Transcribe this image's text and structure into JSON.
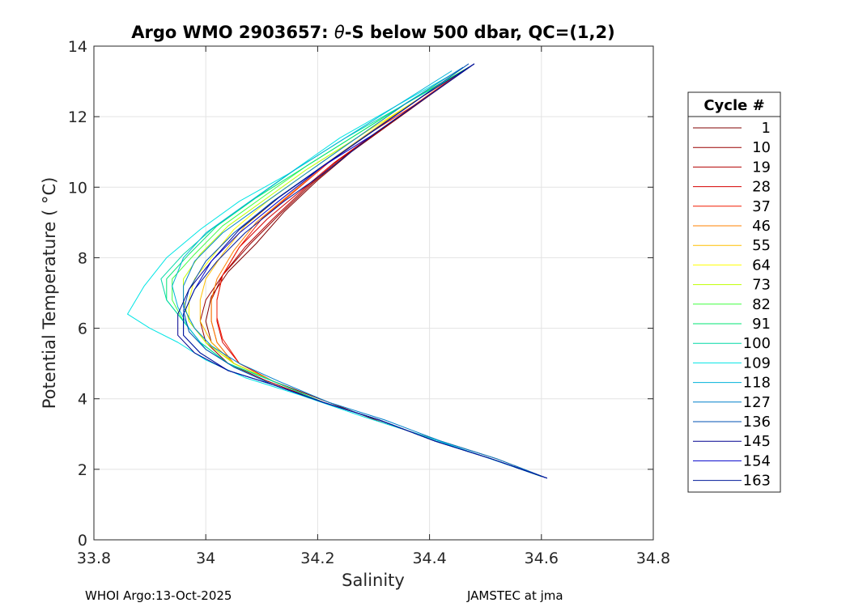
{
  "footer": {
    "left": "WHOI Argo:13-Oct-2025",
    "right": "JAMSTEC at jma"
  },
  "chart_data": {
    "type": "line",
    "title_prefix": "Argo WMO 2903657: ",
    "title_theta": "θ",
    "title_suffix": "-S below 500 dbar,  QC=(1,2)",
    "xlabel": "Salinity",
    "ylabel": "Potential Temperature ( °C)",
    "xlim": [
      33.8,
      34.8
    ],
    "ylim": [
      0,
      14
    ],
    "xticks": [
      33.8,
      34.0,
      34.2,
      34.4,
      34.6,
      34.8
    ],
    "xtick_labels": [
      "33.8",
      "34",
      "34.2",
      "34.4",
      "34.6",
      "34.8"
    ],
    "yticks": [
      0,
      2,
      4,
      6,
      8,
      10,
      12,
      14
    ],
    "ytick_labels": [
      "0",
      "2",
      "4",
      "6",
      "8",
      "10",
      "12",
      "14"
    ],
    "grid": true,
    "legend_title": "Cycle #",
    "legend_position": "outside-right",
    "series": [
      {
        "name": "1",
        "color": "#800000",
        "salinity": [
          34.48,
          34.4,
          34.33,
          34.26,
          34.2,
          34.14,
          34.09,
          34.04,
          34.01,
          34.0,
          34.01,
          34.05,
          34.12,
          34.22,
          34.32,
          34.42,
          34.52,
          34.61
        ],
        "theta": [
          13.5,
          12.6,
          11.8,
          11.0,
          10.2,
          9.3,
          8.4,
          7.6,
          6.9,
          6.2,
          5.6,
          5.0,
          4.5,
          3.9,
          3.3,
          2.8,
          2.3,
          1.75
        ]
      },
      {
        "name": "10",
        "color": "#990000",
        "salinity": [
          34.47,
          34.39,
          34.32,
          34.25,
          34.19,
          34.13,
          34.08,
          34.03,
          34.0,
          33.99,
          34.0,
          34.04,
          34.11,
          34.21,
          34.31,
          34.41,
          34.51,
          34.61
        ],
        "theta": [
          13.4,
          12.5,
          11.7,
          10.9,
          10.1,
          9.2,
          8.4,
          7.5,
          6.8,
          6.2,
          5.6,
          5.0,
          4.5,
          3.9,
          3.4,
          2.8,
          2.3,
          1.75
        ]
      },
      {
        "name": "19",
        "color": "#b30000",
        "salinity": [
          34.46,
          34.38,
          34.31,
          34.24,
          34.18,
          34.12,
          34.07,
          34.03,
          34.01,
          34.01,
          34.02,
          34.05,
          34.12,
          34.21,
          34.31,
          34.41,
          34.51,
          34.6
        ],
        "theta": [
          13.3,
          12.4,
          11.6,
          10.8,
          10.0,
          9.1,
          8.3,
          7.5,
          6.8,
          6.2,
          5.6,
          5.0,
          4.5,
          3.9,
          3.4,
          2.8,
          2.3,
          1.8
        ]
      },
      {
        "name": "28",
        "color": "#d40000",
        "salinity": [
          34.46,
          34.38,
          34.3,
          34.23,
          34.17,
          34.11,
          34.06,
          34.03,
          34.02,
          34.02,
          34.03,
          34.06,
          34.12,
          34.21,
          34.31,
          34.41,
          34.51,
          34.6
        ],
        "theta": [
          13.3,
          12.4,
          11.5,
          10.7,
          9.9,
          9.1,
          8.3,
          7.5,
          6.8,
          6.2,
          5.6,
          5.0,
          4.5,
          3.9,
          3.4,
          2.8,
          2.3,
          1.8
        ]
      },
      {
        "name": "37",
        "color": "#f21a00",
        "salinity": [
          34.45,
          34.37,
          34.29,
          34.22,
          34.16,
          34.1,
          34.06,
          34.03,
          34.02,
          34.02,
          34.03,
          34.06,
          34.12,
          34.21,
          34.31,
          34.41,
          34.51,
          34.6
        ],
        "theta": [
          13.2,
          12.3,
          11.5,
          10.7,
          9.9,
          9.1,
          8.3,
          7.5,
          6.8,
          6.3,
          5.7,
          5.0,
          4.5,
          3.9,
          3.4,
          2.8,
          2.3,
          1.8
        ]
      },
      {
        "name": "46",
        "color": "#ff8000",
        "salinity": [
          34.45,
          34.36,
          34.28,
          34.21,
          34.15,
          34.09,
          34.05,
          34.02,
          34.01,
          34.01,
          34.02,
          34.05,
          34.12,
          34.21,
          34.31,
          34.41,
          34.51,
          34.6
        ],
        "theta": [
          13.2,
          12.3,
          11.4,
          10.6,
          9.8,
          9.0,
          8.2,
          7.4,
          6.8,
          6.2,
          5.6,
          5.0,
          4.5,
          3.9,
          3.4,
          2.8,
          2.3,
          1.8
        ]
      },
      {
        "name": "55",
        "color": "#ffbf00",
        "salinity": [
          34.44,
          34.35,
          34.27,
          34.2,
          34.13,
          34.07,
          34.03,
          34.0,
          33.99,
          33.99,
          34.01,
          34.05,
          34.12,
          34.21,
          34.31,
          34.41,
          34.51,
          34.6
        ],
        "theta": [
          13.1,
          12.2,
          11.3,
          10.5,
          9.7,
          8.9,
          8.1,
          7.4,
          6.8,
          6.2,
          5.6,
          5.0,
          4.5,
          3.9,
          3.4,
          2.8,
          2.3,
          1.8
        ]
      },
      {
        "name": "64",
        "color": "#ffff00",
        "salinity": [
          34.44,
          34.35,
          34.26,
          34.18,
          34.11,
          34.05,
          34.01,
          33.98,
          33.97,
          33.97,
          34.0,
          34.05,
          34.12,
          34.21,
          34.31,
          34.41,
          34.51,
          34.6
        ],
        "theta": [
          13.1,
          12.2,
          11.3,
          10.4,
          9.6,
          8.8,
          8.0,
          7.4,
          6.8,
          6.2,
          5.6,
          5.0,
          4.5,
          3.9,
          3.4,
          2.8,
          2.3,
          1.8
        ]
      },
      {
        "name": "73",
        "color": "#bfff00",
        "salinity": [
          34.45,
          34.36,
          34.27,
          34.18,
          34.11,
          34.04,
          33.99,
          33.96,
          33.96,
          33.97,
          34.0,
          34.05,
          34.12,
          34.21,
          34.31,
          34.41,
          34.51,
          34.6
        ],
        "theta": [
          13.3,
          12.4,
          11.4,
          10.5,
          9.7,
          8.9,
          8.1,
          7.4,
          6.8,
          6.2,
          5.6,
          5.0,
          4.5,
          3.9,
          3.4,
          2.8,
          2.3,
          1.8
        ]
      },
      {
        "name": "82",
        "color": "#40ff40",
        "salinity": [
          34.47,
          34.37,
          34.27,
          34.18,
          34.1,
          34.03,
          33.98,
          33.94,
          33.94,
          33.96,
          33.99,
          34.04,
          34.12,
          34.21,
          34.31,
          34.41,
          34.51,
          34.6
        ],
        "theta": [
          13.4,
          12.5,
          11.5,
          10.6,
          9.7,
          8.9,
          8.1,
          7.4,
          6.8,
          6.2,
          5.6,
          5.0,
          4.5,
          3.9,
          3.4,
          2.8,
          2.3,
          1.8
        ]
      },
      {
        "name": "91",
        "color": "#00e673",
        "salinity": [
          34.46,
          34.36,
          34.26,
          34.17,
          34.09,
          34.02,
          33.97,
          33.93,
          33.93,
          33.96,
          33.99,
          34.04,
          34.12,
          34.21,
          34.31,
          34.41,
          34.51,
          34.6
        ],
        "theta": [
          13.3,
          12.4,
          11.4,
          10.5,
          9.7,
          8.9,
          8.1,
          7.4,
          6.8,
          6.2,
          5.6,
          5.0,
          4.5,
          3.9,
          3.4,
          2.8,
          2.3,
          1.8
        ]
      },
      {
        "name": "100",
        "color": "#00d9a6",
        "salinity": [
          34.45,
          34.35,
          34.25,
          34.16,
          34.08,
          34.01,
          33.96,
          33.92,
          33.93,
          33.96,
          33.99,
          34.04,
          34.12,
          34.21,
          34.31,
          34.41,
          34.51,
          34.6
        ],
        "theta": [
          13.2,
          12.3,
          11.4,
          10.5,
          9.6,
          8.8,
          8.1,
          7.4,
          6.8,
          6.2,
          5.6,
          5.0,
          4.5,
          3.9,
          3.4,
          2.8,
          2.3,
          1.8
        ]
      },
      {
        "name": "109",
        "color": "#00e5e5",
        "salinity": [
          34.44,
          34.34,
          34.24,
          34.15,
          34.06,
          33.99,
          33.93,
          33.89,
          33.86,
          33.9,
          33.95,
          34.0,
          34.07,
          34.17,
          34.28,
          34.38,
          34.49,
          34.6
        ],
        "theta": [
          13.2,
          12.3,
          11.4,
          10.4,
          9.6,
          8.8,
          8.0,
          7.2,
          6.4,
          6.0,
          5.6,
          5.1,
          4.6,
          4.1,
          3.5,
          3.0,
          2.4,
          1.8
        ]
      },
      {
        "name": "118",
        "color": "#00b3d9",
        "salinity": [
          34.44,
          34.34,
          34.24,
          34.15,
          34.07,
          34.0,
          33.96,
          33.94,
          33.95,
          33.97,
          34.0,
          34.05,
          34.12,
          34.21,
          34.31,
          34.41,
          34.51,
          34.61
        ],
        "theta": [
          13.3,
          12.3,
          11.3,
          10.4,
          9.5,
          8.7,
          8.0,
          7.2,
          6.6,
          6.0,
          5.4,
          4.9,
          4.4,
          3.9,
          3.4,
          2.8,
          2.3,
          1.75
        ]
      },
      {
        "name": "127",
        "color": "#0080cc",
        "salinity": [
          34.46,
          34.36,
          34.27,
          34.18,
          34.1,
          34.03,
          33.98,
          33.96,
          33.96,
          33.98,
          34.01,
          34.06,
          34.13,
          34.22,
          34.32,
          34.42,
          34.52,
          34.61
        ],
        "theta": [
          13.4,
          12.4,
          11.4,
          10.4,
          9.5,
          8.7,
          7.9,
          7.2,
          6.6,
          6.0,
          5.5,
          5.0,
          4.5,
          3.9,
          3.4,
          2.8,
          2.3,
          1.75
        ]
      },
      {
        "name": "136",
        "color": "#0050b3",
        "salinity": [
          34.47,
          34.38,
          34.29,
          34.2,
          34.12,
          34.05,
          34.0,
          33.97,
          33.96,
          33.97,
          34.0,
          34.05,
          34.12,
          34.21,
          34.31,
          34.41,
          34.51,
          34.61
        ],
        "theta": [
          13.5,
          12.5,
          11.5,
          10.5,
          9.6,
          8.7,
          7.9,
          7.1,
          6.5,
          5.9,
          5.4,
          4.9,
          4.4,
          3.9,
          3.4,
          2.8,
          2.3,
          1.75
        ]
      },
      {
        "name": "145",
        "color": "#00008f",
        "salinity": [
          34.48,
          34.39,
          34.3,
          34.21,
          34.13,
          34.06,
          34.01,
          33.97,
          33.95,
          33.95,
          33.98,
          34.04,
          34.12,
          34.21,
          34.31,
          34.41,
          34.51,
          34.61
        ],
        "theta": [
          13.5,
          12.6,
          11.6,
          10.6,
          9.7,
          8.8,
          7.9,
          7.1,
          6.4,
          5.8,
          5.3,
          4.8,
          4.4,
          3.9,
          3.4,
          2.8,
          2.3,
          1.75
        ]
      },
      {
        "name": "154",
        "color": "#0000cc",
        "salinity": [
          34.48,
          34.39,
          34.3,
          34.21,
          34.13,
          34.06,
          34.01,
          33.98,
          33.96,
          33.96,
          33.99,
          34.04,
          34.12,
          34.21,
          34.31,
          34.41,
          34.51,
          34.61
        ],
        "theta": [
          13.5,
          12.5,
          11.5,
          10.6,
          9.6,
          8.7,
          7.9,
          7.1,
          6.4,
          5.8,
          5.3,
          4.8,
          4.4,
          3.9,
          3.4,
          2.8,
          2.3,
          1.75
        ]
      },
      {
        "name": "163",
        "color": "#001a99",
        "salinity": [
          34.48,
          34.39,
          34.3,
          34.22,
          34.14,
          34.07,
          34.02,
          33.98,
          33.96,
          33.96,
          33.99,
          34.04,
          34.12,
          34.21,
          34.31,
          34.41,
          34.51,
          34.61
        ],
        "theta": [
          13.5,
          12.5,
          11.5,
          10.5,
          9.6,
          8.7,
          7.9,
          7.1,
          6.4,
          5.8,
          5.3,
          4.8,
          4.4,
          3.9,
          3.4,
          2.8,
          2.3,
          1.75
        ]
      }
    ]
  }
}
